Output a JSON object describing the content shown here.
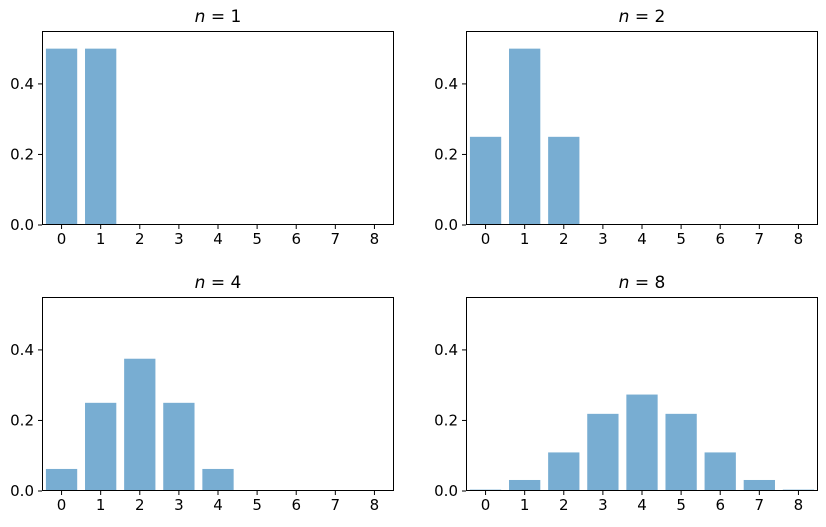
{
  "figure": {
    "background": "#ffffff",
    "bar_color": "#78add2",
    "spine_color": "#000000",
    "tick_color": "#000000",
    "text_color": "#000000"
  },
  "chart_data": [
    {
      "type": "bar",
      "title": "n = 1",
      "x": [
        0,
        1
      ],
      "values": [
        0.5,
        0.5
      ],
      "xtick_labels": [
        "0",
        "1",
        "2",
        "3",
        "4",
        "5",
        "6",
        "7",
        "8"
      ],
      "xtick_values": [
        0,
        1,
        2,
        3,
        4,
        5,
        6,
        7,
        8
      ],
      "ytick_labels": [
        "0.0",
        "0.2",
        "0.4"
      ],
      "ytick_values": [
        0,
        0.2,
        0.4
      ],
      "xlim": [
        -0.5,
        8.5
      ],
      "ylim": [
        0,
        0.55
      ],
      "bar_width": 0.8,
      "grid": false,
      "legend": null,
      "xlabel": "",
      "ylabel": ""
    },
    {
      "type": "bar",
      "title": "n = 2",
      "x": [
        0,
        1,
        2
      ],
      "values": [
        0.25,
        0.5,
        0.25
      ],
      "xtick_labels": [
        "0",
        "1",
        "2",
        "3",
        "4",
        "5",
        "6",
        "7",
        "8"
      ],
      "xtick_values": [
        0,
        1,
        2,
        3,
        4,
        5,
        6,
        7,
        8
      ],
      "ytick_labels": [
        "0.0",
        "0.2",
        "0.4"
      ],
      "ytick_values": [
        0,
        0.2,
        0.4
      ],
      "xlim": [
        -0.5,
        8.5
      ],
      "ylim": [
        0,
        0.55
      ],
      "bar_width": 0.8,
      "grid": false,
      "legend": null,
      "xlabel": "",
      "ylabel": ""
    },
    {
      "type": "bar",
      "title": "n = 4",
      "x": [
        0,
        1,
        2,
        3,
        4
      ],
      "values": [
        0.0625,
        0.25,
        0.375,
        0.25,
        0.0625
      ],
      "xtick_labels": [
        "0",
        "1",
        "2",
        "3",
        "4",
        "5",
        "6",
        "7",
        "8"
      ],
      "xtick_values": [
        0,
        1,
        2,
        3,
        4,
        5,
        6,
        7,
        8
      ],
      "ytick_labels": [
        "0.0",
        "0.2",
        "0.4"
      ],
      "ytick_values": [
        0,
        0.2,
        0.4
      ],
      "xlim": [
        -0.5,
        8.5
      ],
      "ylim": [
        0,
        0.55
      ],
      "bar_width": 0.8,
      "grid": false,
      "legend": null,
      "xlabel": "",
      "ylabel": ""
    },
    {
      "type": "bar",
      "title": "n = 8",
      "x": [
        0,
        1,
        2,
        3,
        4,
        5,
        6,
        7,
        8
      ],
      "values": [
        0.00390625,
        0.03125,
        0.109375,
        0.21875,
        0.2734375,
        0.21875,
        0.109375,
        0.03125,
        0.00390625
      ],
      "xtick_labels": [
        "0",
        "1",
        "2",
        "3",
        "4",
        "5",
        "6",
        "7",
        "8"
      ],
      "xtick_values": [
        0,
        1,
        2,
        3,
        4,
        5,
        6,
        7,
        8
      ],
      "ytick_labels": [
        "0.0",
        "0.2",
        "0.4"
      ],
      "ytick_values": [
        0,
        0.2,
        0.4
      ],
      "xlim": [
        -0.5,
        8.5
      ],
      "ylim": [
        0,
        0.55
      ],
      "bar_width": 0.8,
      "grid": false,
      "legend": null,
      "xlabel": "",
      "ylabel": ""
    }
  ]
}
